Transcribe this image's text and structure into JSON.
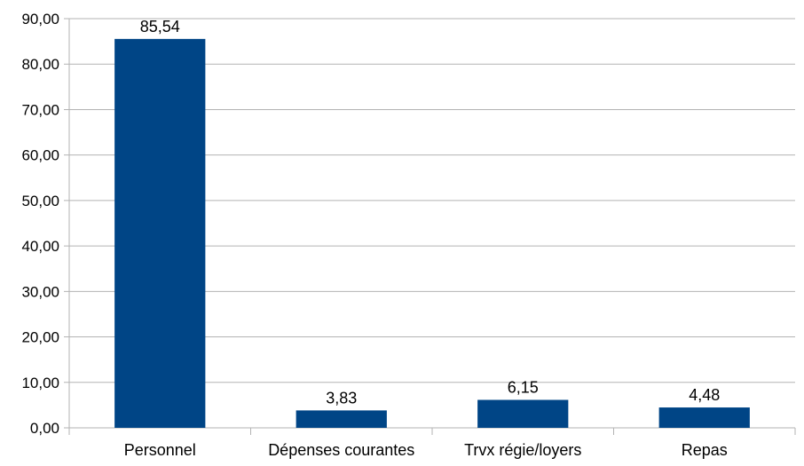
{
  "chart_data": {
    "type": "bar",
    "title": "",
    "xlabel": "",
    "ylabel": "",
    "categories": [
      "Personnel",
      "Dépenses courantes",
      "Trvx régie/loyers",
      "Repas"
    ],
    "values": [
      85.54,
      3.83,
      6.15,
      4.48
    ],
    "data_labels": [
      "85,54",
      "3,83",
      "6,15",
      "4,48"
    ],
    "ylim": [
      0,
      90
    ],
    "ytick_values": [
      0,
      10,
      20,
      30,
      40,
      50,
      60,
      70,
      80,
      90
    ],
    "ytick_labels": [
      "0,00",
      "10,00",
      "20,00",
      "30,00",
      "40,00",
      "50,00",
      "60,00",
      "70,00",
      "80,00",
      "90,00"
    ],
    "grid": true,
    "legend": "none",
    "colors": {
      "bar": "#004586",
      "grid": "#b3b3b3",
      "axis": "#b3b3b3"
    }
  }
}
